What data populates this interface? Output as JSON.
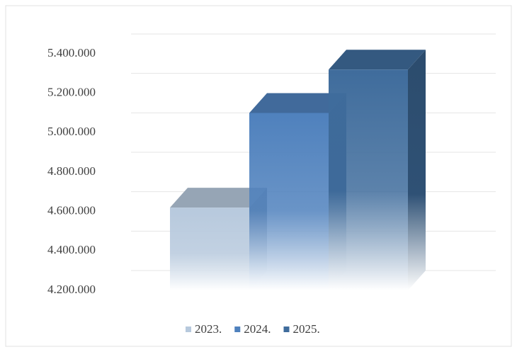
{
  "chart_data": {
    "type": "bar3d",
    "series": [
      {
        "name": "2023.",
        "color": "#b7c9dd",
        "values": [
          4620000
        ]
      },
      {
        "name": "2024.",
        "color": "#4f81bd",
        "values": [
          5100000
        ]
      },
      {
        "name": "2025.",
        "color": "#3f6c9c",
        "values": [
          5320000
        ]
      }
    ],
    "ylim": [
      4200000,
      5400000
    ],
    "yticks": [
      {
        "value": 4200000,
        "label": "4.200.000"
      },
      {
        "value": 4400000,
        "label": "4.400.000"
      },
      {
        "value": 4600000,
        "label": "4.600.000"
      },
      {
        "value": 4800000,
        "label": "4.800.000"
      },
      {
        "value": 5000000,
        "label": "5.000.000"
      },
      {
        "value": 5200000,
        "label": "5.200.000"
      },
      {
        "value": 5400000,
        "label": "5.400.000"
      }
    ],
    "grid": true,
    "legend": "bottom"
  }
}
